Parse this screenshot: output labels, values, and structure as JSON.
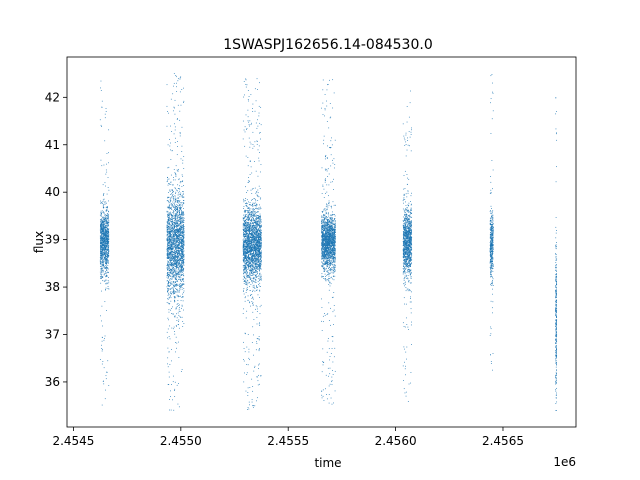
{
  "chart_data": {
    "type": "scatter",
    "title": "1SWASPJ162656.14-084530.0",
    "xlabel": "time",
    "ylabel": "flux",
    "x_offset_label": "1e6",
    "xlim": [
      2454470,
      2456840
    ],
    "ylim": [
      35.05,
      42.85
    ],
    "x_ticks": [
      2454500,
      2455000,
      2455500,
      2456000,
      2456500
    ],
    "x_tick_labels": [
      "2.4545",
      "2.4550",
      "2.4555",
      "2.4560",
      "2.4565"
    ],
    "y_ticks": [
      36,
      37,
      38,
      39,
      40,
      41,
      42
    ],
    "y_tick_labels": [
      "36",
      "37",
      "38",
      "39",
      "40",
      "41",
      "42"
    ],
    "grid": false,
    "marker_color": "#1f77b4",
    "clusters": [
      {
        "x_start": 2454625,
        "x_end": 2454665,
        "center": 38.95,
        "spread": 0.35,
        "lo": 35.5,
        "hi": 42.4
      },
      {
        "x_start": 2454935,
        "x_end": 2455015,
        "center": 38.9,
        "spread": 0.55,
        "lo": 35.4,
        "hi": 42.5
      },
      {
        "x_start": 2455290,
        "x_end": 2455375,
        "center": 38.9,
        "spread": 0.4,
        "lo": 35.4,
        "hi": 42.4
      },
      {
        "x_start": 2455655,
        "x_end": 2455720,
        "center": 38.95,
        "spread": 0.3,
        "lo": 35.5,
        "hi": 42.4
      },
      {
        "x_start": 2456035,
        "x_end": 2456075,
        "center": 38.95,
        "spread": 0.35,
        "lo": 35.5,
        "hi": 42.2
      },
      {
        "x_start": 2456440,
        "x_end": 2456455,
        "center": 38.9,
        "spread": 0.35,
        "lo": 35.6,
        "hi": 42.5
      },
      {
        "x_start": 2456745,
        "x_end": 2456750,
        "center": 37.3,
        "spread": 0.8,
        "lo": 35.4,
        "hi": 42.0
      }
    ]
  }
}
